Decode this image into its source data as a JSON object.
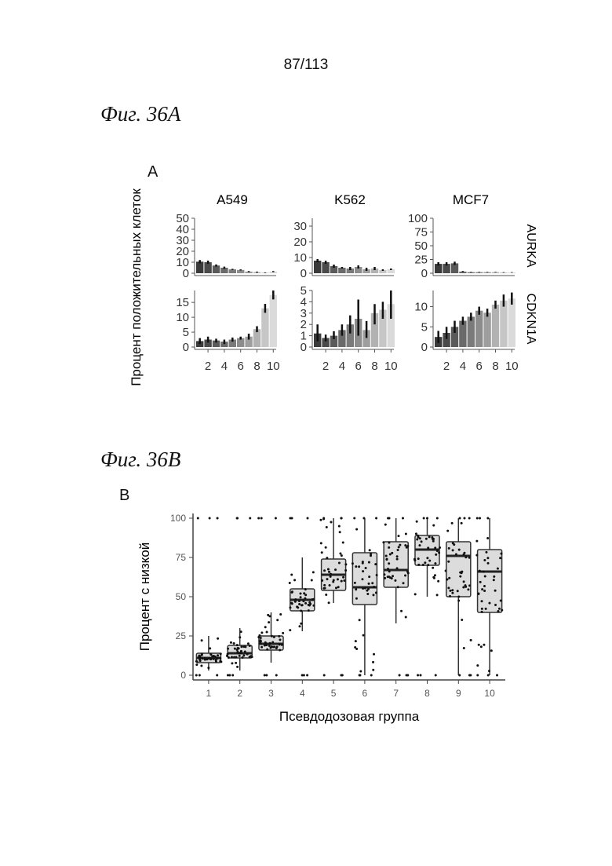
{
  "page_number": "87/113",
  "fig_a": {
    "title": "Фиг. 36A",
    "letter": "A"
  },
  "fig_b": {
    "title": "Фиг. 36B",
    "letter": "B"
  },
  "chart_data": [
    {
      "type": "bar",
      "panel": "A",
      "facet_columns": [
        "A549",
        "K562",
        "MCF7"
      ],
      "facet_rows": [
        "AURKA",
        "CDKN1A"
      ],
      "ylabel": "Процент положительных клеток",
      "xlabel": "",
      "categories": [
        1,
        2,
        3,
        4,
        5,
        6,
        7,
        8,
        9,
        10
      ],
      "x_ticks": [
        2,
        4,
        6,
        8,
        10
      ],
      "fill_colors": [
        "#3a3a3a",
        "#4a4a4a",
        "#5a5a5a",
        "#6a6a6a",
        "#7a7a7a",
        "#8c8c8c",
        "#9e9e9e",
        "#b2b2b2",
        "#c6c6c6",
        "#dadada"
      ],
      "panels": [
        {
          "column": "A549",
          "row": "AURKA",
          "ylim": [
            0,
            50
          ],
          "y_ticks": [
            0,
            10,
            20,
            30,
            40,
            50
          ],
          "values": [
            10.5,
            10,
            7,
            5,
            3.5,
            3,
            1.5,
            1,
            0.5,
            1.5
          ],
          "err_low": [
            9,
            8.5,
            6,
            4,
            3,
            2.5,
            1,
            0.5,
            0.2,
            1
          ],
          "err_high": [
            12,
            11.5,
            8,
            6,
            4,
            3.5,
            2,
            1.5,
            0.8,
            2
          ]
        },
        {
          "column": "K562",
          "row": "AURKA",
          "ylim": [
            0,
            35
          ],
          "y_ticks": [
            0,
            10,
            20,
            30
          ],
          "values": [
            8,
            7,
            4.5,
            3.5,
            3,
            4,
            2.5,
            3,
            2,
            2.5
          ],
          "err_low": [
            7,
            6,
            3.5,
            3,
            2,
            3,
            1.5,
            2,
            1.5,
            2
          ],
          "err_high": [
            9,
            8,
            5.5,
            4,
            4,
            5,
            3.5,
            4,
            2.5,
            3
          ]
        },
        {
          "column": "MCF7",
          "row": "AURKA",
          "ylim": [
            0,
            100
          ],
          "y_ticks": [
            0,
            25,
            50,
            75,
            100
          ],
          "values": [
            17,
            17,
            18,
            3,
            2,
            2,
            2,
            2,
            1.5,
            1.5
          ],
          "err_low": [
            14,
            14,
            15,
            2,
            1.5,
            1.5,
            1.5,
            1.5,
            1,
            1
          ],
          "err_high": [
            20,
            20,
            21,
            4,
            2.5,
            2.5,
            2.5,
            2.5,
            2,
            2
          ]
        },
        {
          "column": "A549",
          "row": "CDKN1A",
          "ylim": [
            0,
            19
          ],
          "y_ticks": [
            0,
            5,
            10,
            15
          ],
          "values": [
            2,
            2.5,
            2.2,
            1.8,
            2.5,
            3,
            3.5,
            6,
            13,
            17.5
          ],
          "err_low": [
            1,
            1.5,
            1.5,
            1,
            1.8,
            2.5,
            2.5,
            5,
            11.5,
            16
          ],
          "err_high": [
            3,
            3.5,
            2.8,
            2.5,
            3.2,
            3.5,
            4.5,
            7,
            14.5,
            19
          ]
        },
        {
          "column": "K562",
          "row": "CDKN1A",
          "ylim": [
            0,
            5
          ],
          "y_ticks": [
            0,
            1,
            2,
            3,
            4,
            5
          ],
          "values": [
            1.2,
            0.8,
            1,
            1.5,
            2,
            2.5,
            1.5,
            3,
            3.3,
            3.8
          ],
          "err_low": [
            0.5,
            0.5,
            0.7,
            1,
            1.2,
            1,
            0.8,
            2,
            2.5,
            2.5
          ],
          "err_high": [
            2,
            1.1,
            1.4,
            2,
            2.8,
            4.2,
            2.3,
            3.8,
            4,
            5
          ]
        },
        {
          "column": "MCF7",
          "row": "CDKN1A",
          "ylim": [
            0,
            14
          ],
          "y_ticks": [
            0,
            5,
            10
          ],
          "values": [
            2.5,
            3.5,
            5,
            6.5,
            7.5,
            9,
            8.5,
            10.5,
            11.5,
            12
          ],
          "err_low": [
            1,
            2,
            3.5,
            5.5,
            6.5,
            8,
            7.5,
            9.5,
            10,
            10.5
          ],
          "err_high": [
            4,
            5,
            6.5,
            7.5,
            8.5,
            10,
            9.5,
            11.5,
            13,
            13.5
          ]
        }
      ]
    },
    {
      "type": "box",
      "panel": "B",
      "ylabel": "Процент с низкой",
      "xlabel": "Псевдодозовая группа",
      "categories": [
        "1",
        "2",
        "3",
        "4",
        "5",
        "6",
        "7",
        "8",
        "9",
        "10"
      ],
      "ylim": [
        0,
        100
      ],
      "y_ticks": [
        "0",
        "25",
        "50",
        "75",
        "100"
      ],
      "box_fill": "#dcdcdc",
      "boxes": [
        {
          "q1": 8,
          "median": 11,
          "q3": 14,
          "whisker_low": 3,
          "whisker_high": 25
        },
        {
          "q1": 11,
          "median": 14,
          "q3": 19,
          "whisker_low": 3,
          "whisker_high": 30
        },
        {
          "q1": 16,
          "median": 20,
          "q3": 25,
          "whisker_low": 8,
          "whisker_high": 40
        },
        {
          "q1": 41,
          "median": 48,
          "q3": 55,
          "whisker_low": 28,
          "whisker_high": 75
        },
        {
          "q1": 54,
          "median": 64,
          "q3": 74,
          "whisker_low": 46,
          "whisker_high": 100
        },
        {
          "q1": 45,
          "median": 56,
          "q3": 78,
          "whisker_low": 0,
          "whisker_high": 100
        },
        {
          "q1": 56,
          "median": 67,
          "q3": 85,
          "whisker_low": 33,
          "whisker_high": 100
        },
        {
          "q1": 70,
          "median": 80,
          "q3": 89,
          "whisker_low": 50,
          "whisker_high": 100
        },
        {
          "q1": 50,
          "median": 76,
          "q3": 85,
          "whisker_low": 0,
          "whisker_high": 100
        },
        {
          "q1": 40,
          "median": 66,
          "q3": 80,
          "whisker_low": 0,
          "whisker_high": 100
        }
      ]
    }
  ]
}
